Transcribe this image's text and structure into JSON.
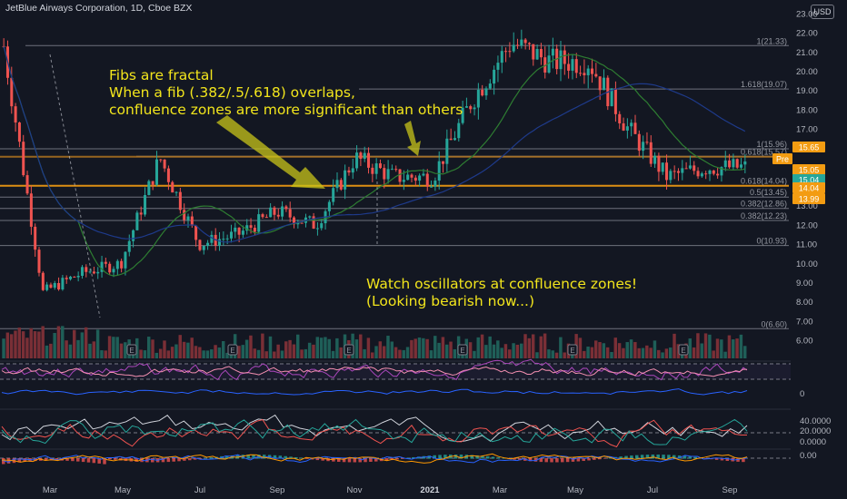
{
  "header": {
    "title": "JetBlue Airways Corporation, 1D, Cboe BZX",
    "currency": "USD"
  },
  "annotations": {
    "text1": "Fibs are fractal\nWhen a fib (.382/.5/.618) overlaps,\nconfluence zones are more significant than others",
    "text2": "Watch oscillators at confluence zones!\n(Looking bearish now...)"
  },
  "chart_data": {
    "type": "candlestick",
    "title": "JetBlue Airways Corporation, 1D, Cboe BZX",
    "y_ticks": [
      "23.00",
      "22.00",
      "21.00",
      "20.00",
      "19.00",
      "18.00",
      "17.00",
      "16.00",
      "15.00",
      "14.00",
      "13.00",
      "12.00",
      "11.00",
      "10.00",
      "9.00",
      "8.00",
      "7.00",
      "6.00"
    ],
    "ylim": [
      5.5,
      23.2
    ],
    "x_ticks": [
      "Mar",
      "May",
      "Jul",
      "Sep",
      "Nov",
      "2021",
      "Mar",
      "May",
      "Jul",
      "Sep"
    ],
    "series_trajectory": [
      {
        "month": "Feb 2020",
        "price": 21.3
      },
      {
        "month": "Mar 2020",
        "price": 8.5
      },
      {
        "month": "Apr 2020",
        "price": 9.5
      },
      {
        "month": "May 2020",
        "price": 10.0
      },
      {
        "month": "Jun 2020",
        "price": 15.5
      },
      {
        "month": "Jul 2020",
        "price": 11.0
      },
      {
        "month": "Aug 2020",
        "price": 11.5
      },
      {
        "month": "Sep 2020",
        "price": 12.7
      },
      {
        "month": "Oct 2020",
        "price": 12.0
      },
      {
        "month": "Nov 2020",
        "price": 15.5
      },
      {
        "month": "Dec 2020",
        "price": 14.5
      },
      {
        "month": "Jan 2021",
        "price": 14.5
      },
      {
        "month": "Feb 2021",
        "price": 18.5
      },
      {
        "month": "Mar 2021",
        "price": 21.5
      },
      {
        "month": "Apr 2021",
        "price": 20.5
      },
      {
        "month": "May 2021",
        "price": 20.5
      },
      {
        "month": "Jun 2021",
        "price": 17.0
      },
      {
        "month": "Jul 2021",
        "price": 14.5
      },
      {
        "month": "Aug 2021",
        "price": 15.0
      },
      {
        "month": "Sep 2021",
        "price": 15.0
      }
    ],
    "fib_levels": [
      {
        "label": "1(21.33)",
        "value": 21.33
      },
      {
        "label": "1.618(19.07)",
        "value": 19.07
      },
      {
        "label": "0.618(15.57)",
        "value": 15.57
      },
      {
        "label": "1(15.96)",
        "value": 15.96
      },
      {
        "label": "0.618(14.04)",
        "value": 14.04
      },
      {
        "label": "0.5(13.45)",
        "value": 13.45
      },
      {
        "label": "0.382(12.86)",
        "value": 12.86
      },
      {
        "label": "0.382(12.23)",
        "value": 12.23
      },
      {
        "label": "0(10.93)",
        "value": 10.93
      },
      {
        "label": "0(6.60)",
        "value": 6.6
      }
    ],
    "price_tags": [
      {
        "label": "15.65",
        "color": "#f39c12"
      },
      {
        "label": "Pre",
        "color": "#f39c12"
      },
      {
        "label": "15.05",
        "color": "#f39c12"
      },
      {
        "label": "15.04",
        "color": "#26a69a"
      },
      {
        "label": "14.04",
        "color": "#f39c12"
      },
      {
        "label": "13.99",
        "color": "#f39c12"
      }
    ],
    "oscillator_ticks": [
      "0",
      "40.0000",
      "20.0000",
      "0.0000",
      "0.00"
    ],
    "colors": {
      "up": "#26a69a",
      "down": "#ef5350",
      "annotation": "#f2e51c",
      "fib_line": "#787b86",
      "confluence": "#f39c12"
    }
  }
}
